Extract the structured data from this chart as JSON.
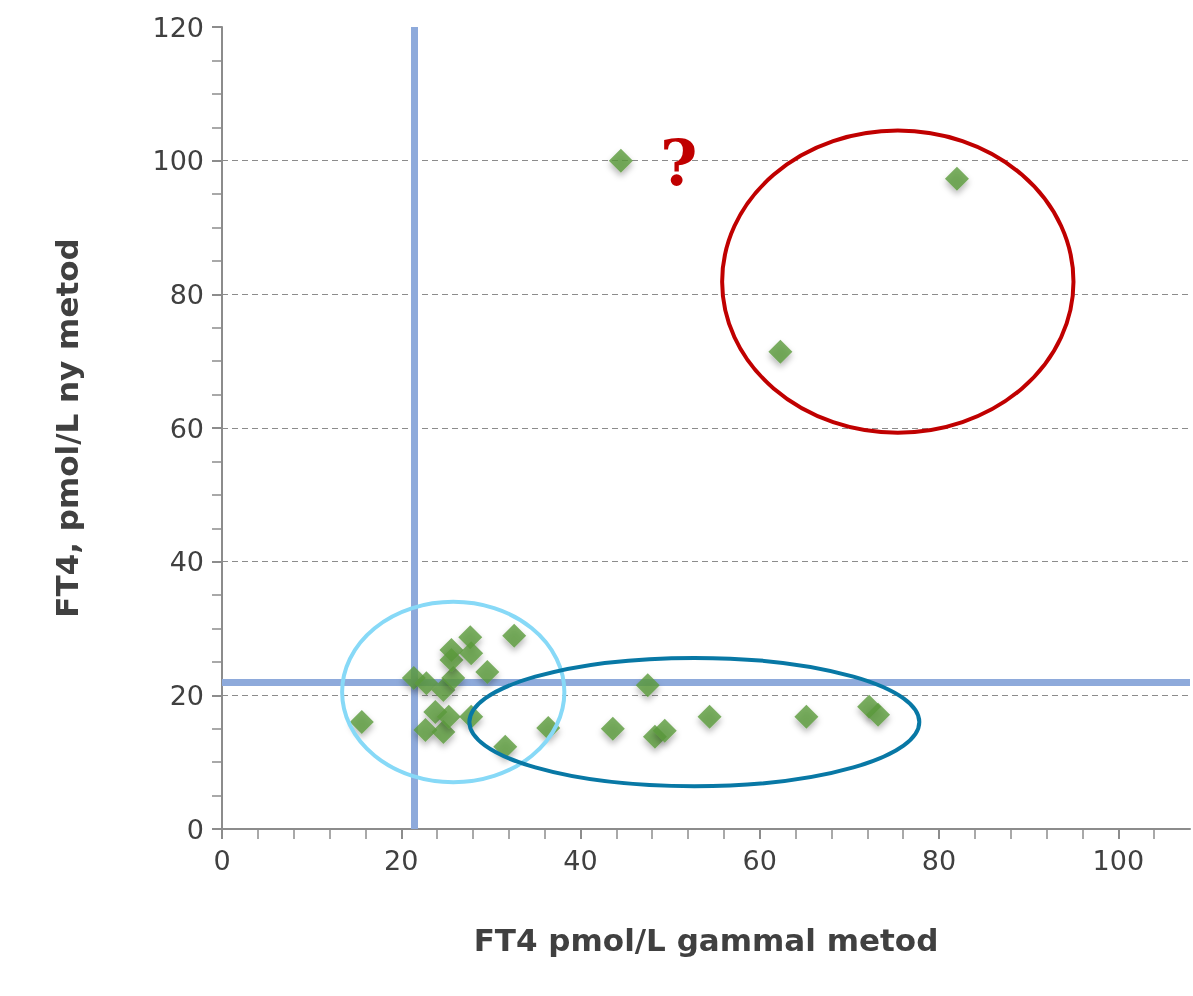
{
  "chart_data": {
    "type": "scatter",
    "xlabel": "FT4 pmol/L gammal metod",
    "ylabel": "FT4, pmol/L ny metod",
    "x": [
      15.6,
      21.4,
      22.8,
      24.7,
      25.8,
      25.6,
      25.6,
      27.7,
      27.8,
      29.6,
      32.6,
      23.8,
      22.7,
      24.7,
      25.3,
      27.8,
      31.6,
      36.4,
      43.6,
      47.5,
      48.3,
      49.4,
      54.4,
      65.2,
      72.2,
      73.2,
      44.5,
      82.0,
      62.3
    ],
    "values": [
      16.0,
      22.6,
      21.8,
      20.8,
      22.6,
      26.8,
      25.3,
      28.7,
      26.3,
      23.5,
      28.9,
      17.5,
      14.8,
      14.5,
      16.8,
      16.8,
      12.3,
      15.1,
      15.0,
      21.5,
      13.8,
      14.7,
      16.8,
      16.8,
      18.3,
      17.1,
      100.0,
      97.3,
      71.4
    ],
    "color": "#5b9a3b",
    "marker": "diamond",
    "xlim": [
      0,
      108
    ],
    "xticks": [
      0,
      20,
      40,
      60,
      80,
      100
    ],
    "ylim": [
      0,
      120
    ],
    "yticks": [
      0,
      20,
      40,
      60,
      80,
      100,
      120
    ],
    "grid": "y",
    "ref_lines": [
      {
        "axis": "x",
        "value": 21.5,
        "color": "#8eaadb"
      },
      {
        "axis": "y",
        "value": 22,
        "color": "#8eaadb"
      }
    ],
    "annotations": [
      {
        "text": "?",
        "x": 44.5,
        "y": 100
      }
    ]
  }
}
